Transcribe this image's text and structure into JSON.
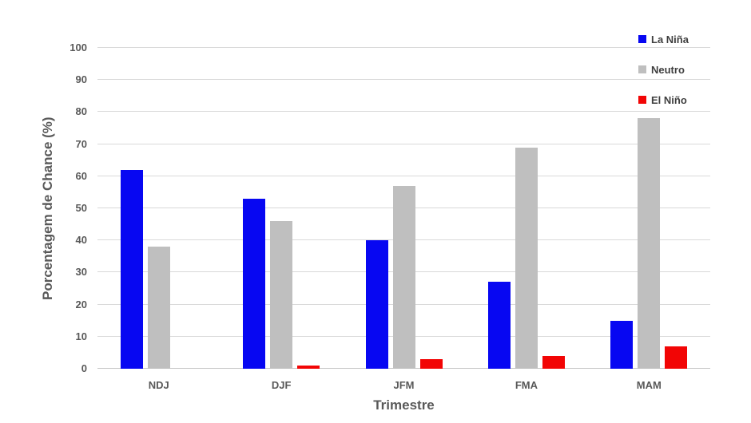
{
  "chart": {
    "y_axis_title": "Porcentagem de Chance (%)",
    "x_axis_title": "Trimestre"
  },
  "chart_data": {
    "type": "bar",
    "title": "",
    "categories": [
      "NDJ",
      "DJF",
      "JFM",
      "FMA",
      "MAM"
    ],
    "series": [
      {
        "name": "La Niña",
        "key": "la-nina",
        "color": "#0707f2",
        "values": [
          62,
          53,
          40,
          27,
          15
        ]
      },
      {
        "name": "Neutro",
        "key": "neutro",
        "color": "#bfbfbf",
        "values": [
          38,
          46,
          57,
          69,
          78
        ]
      },
      {
        "name": "El Niño",
        "key": "el-nino",
        "color": "#f20505",
        "values": [
          0,
          1,
          3,
          4,
          7
        ]
      }
    ],
    "xlabel": "Trimestre",
    "ylabel": "Porcentagem de Chance (%)",
    "ylim": [
      0,
      100
    ],
    "ytick_step": 10,
    "ytick_labels": [
      "0",
      "10",
      "20",
      "30",
      "40",
      "50",
      "60",
      "70",
      "80",
      "90",
      "100"
    ],
    "grid": true,
    "legend_position": "top-right",
    "colors": {
      "gridline": "#d9d9d9",
      "baseline": "#c6c6c6",
      "axis_text": "#595959",
      "legend_text": "#3f3f3f",
      "background": "#ffffff"
    }
  }
}
